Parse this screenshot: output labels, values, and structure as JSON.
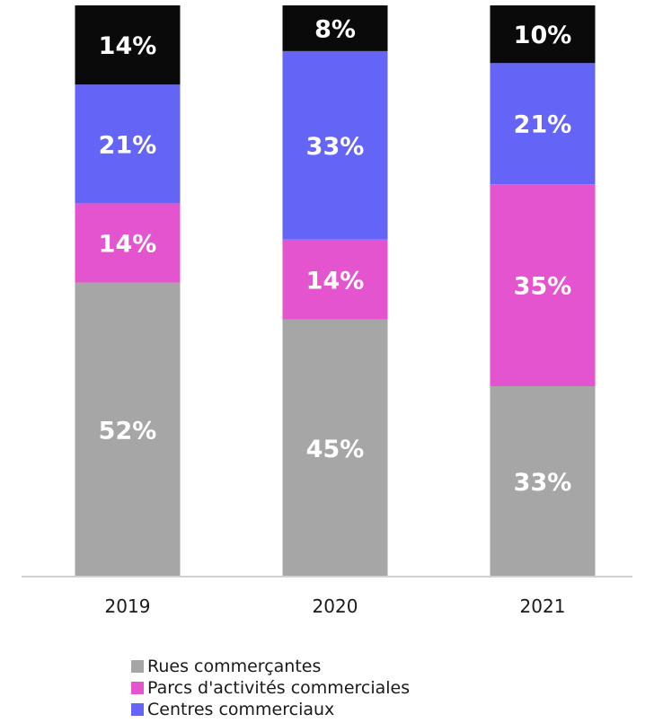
{
  "chart_data": {
    "type": "bar",
    "stacked": true,
    "categories": [
      "2019",
      "2020",
      "2021"
    ],
    "series": [
      {
        "name": "Rues commerçantes",
        "color": "#a6a6a6",
        "values": [
          52,
          45,
          33
        ],
        "labels": [
          "52%",
          "45%",
          "33%"
        ]
      },
      {
        "name": "Parcs d'activités commerciales",
        "color": "#e454cf",
        "values": [
          14,
          14,
          35
        ],
        "labels": [
          "14%",
          "14%",
          "35%"
        ]
      },
      {
        "name": "Centres commerciaux",
        "color": "#6464f7",
        "values": [
          21,
          33,
          21
        ],
        "labels": [
          "21%",
          "33%",
          "21%"
        ]
      },
      {
        "name": "",
        "color": "#0a0a0a",
        "values": [
          14,
          8,
          10
        ],
        "labels": [
          "14%",
          "8%",
          "10%"
        ]
      }
    ],
    "ylim": [
      0,
      100
    ],
    "grid": false,
    "legend_position": "bottom"
  }
}
